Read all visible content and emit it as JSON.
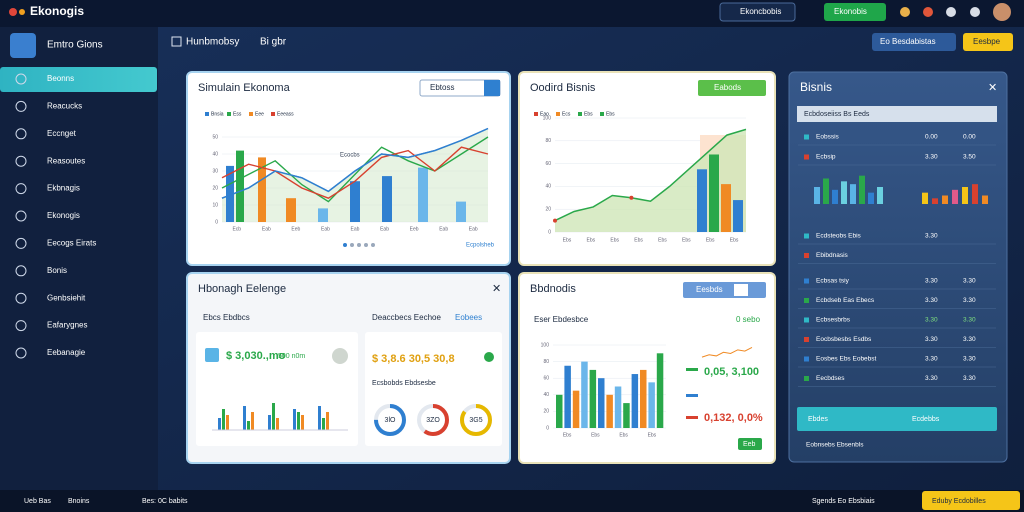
{
  "topbar": {
    "logo": "Ekonogis",
    "search": "Ekoncbobis",
    "button": "Ekonobis"
  },
  "sidebar": {
    "title": "Emtro Gions",
    "items": [
      "Beonns",
      "Reacucks",
      "Eccnget",
      "Reasoutes",
      "Ekbnagis",
      "Ekonogis",
      "Eecogs Eirats",
      "Bonis",
      "Genbsiehit",
      "Eafarygnes",
      "Eebanagie"
    ]
  },
  "header": {
    "left": "Hunbmobsy",
    "tab": "Bi gbr",
    "button": "Eo Besdabistas",
    "action": "Eesbpe"
  },
  "panel1": {
    "title": "Simulain Ekonoma",
    "select": "Ebtoss",
    "legend": [
      "Bnsia",
      "Ess",
      "Eee",
      "Eeeass"
    ],
    "sublabel": "Ecocbs",
    "link": "Ecpolsheb",
    "ylim": [
      0,
      60
    ],
    "yticks": [
      0,
      10,
      20,
      30,
      40,
      50
    ],
    "bars": [
      33,
      42,
      38,
      14,
      8,
      24,
      27,
      32,
      12
    ],
    "bar_colors": [
      "#2f7fd0",
      "#2aa84a",
      "#f08a24",
      "#f08a24",
      "#6bb6ea",
      "#2f7fd0",
      "#2f7fd0",
      "#6bb6ea",
      "#6bb6ea"
    ],
    "lines": [
      {
        "color": "#2aa84a",
        "values": [
          20,
          28,
          36,
          22,
          12,
          28,
          44,
          36,
          30,
          40,
          50
        ]
      },
      {
        "color": "#d8412f",
        "values": [
          26,
          34,
          30,
          20,
          14,
          24,
          38,
          42,
          30,
          44,
          40
        ]
      },
      {
        "color": "#2f7fd0",
        "values": [
          14,
          20,
          30,
          26,
          18,
          30,
          40,
          38,
          42,
          48,
          55
        ]
      }
    ],
    "xlabels": [
      "Ecb",
      "Eab",
      "Eeb",
      "Eab",
      "Eab",
      "Eab",
      "Eeb",
      "Eab",
      "Eab"
    ]
  },
  "panel2": {
    "title": "Oodird Bisnis",
    "button": "Eabods",
    "legend": [
      "Eao",
      "Ecs",
      "Ebs",
      "Ebs"
    ],
    "ylim": [
      0,
      100
    ],
    "yticks": [
      0,
      20,
      40,
      60,
      80,
      100
    ],
    "area": [
      10,
      18,
      22,
      32,
      30,
      27,
      40,
      55,
      70,
      85,
      90
    ],
    "bars": [
      55,
      68,
      42,
      28
    ],
    "bar_colors": [
      "#2f7fd0",
      "#2aa84a",
      "#f08a24",
      "#2f7fd0"
    ],
    "xlabels": [
      "Ebs",
      "Ebs",
      "Ebs",
      "Ebs",
      "Ebs",
      "Ebs",
      "Ebs",
      "Ebs"
    ]
  },
  "panel3": {
    "title": "Hbonagh Eelenge",
    "card1": {
      "title": "Ebcs Ebdbcs",
      "amount": "$ 3,030.,mo",
      "sub": "500 n0m",
      "bars": [
        20,
        35,
        25,
        40,
        15,
        30,
        25,
        45,
        20,
        35,
        30,
        25,
        40,
        20,
        30
      ]
    },
    "card2": {
      "title": "Deaccbecs Eechoe",
      "link": "Eobees",
      "amount": "$ 3,8.6 30,5 30,8",
      "sub": "Ecsbobds Ebdsesbe",
      "donuts": [
        75,
        60,
        85
      ],
      "donut_labels": [
        "3lO",
        "3ZO",
        "3G5"
      ]
    }
  },
  "panel4": {
    "title": "Bbdnodis",
    "button": "Eesbds",
    "subtitle": "Eser Ebdesbce",
    "tag": "0 sebo",
    "ylim": [
      0,
      100
    ],
    "yticks": [
      0,
      20,
      40,
      60,
      80,
      100
    ],
    "bars": [
      40,
      75,
      45,
      80,
      70,
      60,
      40,
      50,
      30,
      65,
      70,
      55,
      90
    ],
    "xlabels": [
      "Ebs",
      "Ebs",
      "Ebs",
      "Ebs"
    ],
    "spark": [
      20,
      30,
      25,
      40,
      35,
      50,
      45,
      60
    ],
    "stat1": "0,05, 3,100",
    "stat2": "0,132, 0,0%",
    "ok": "Eeb"
  },
  "panel5": {
    "title": "Bisnis",
    "head": "Ecbdoseiiss Bs Eeds",
    "rows1": [
      [
        "Eobssis",
        "0.00",
        "0.00"
      ],
      [
        "Ecbsip",
        "3.30",
        "3.50"
      ]
    ],
    "bars_a": [
      30,
      45,
      25,
      40,
      35,
      50,
      20,
      30
    ],
    "bars_b": [
      20,
      10,
      15,
      25,
      30,
      35,
      15
    ],
    "rows2": [
      [
        "Ecdsteobs Ebis",
        "3.30"
      ],
      [
        "Ebibdnasis"
      ],
      [
        "Ecbsas tsiy",
        "3.30",
        "3.30"
      ],
      [
        "Ecbdseb Eas Ebecs",
        "3.30",
        "3.30"
      ],
      [
        "Ecbsesbrbs",
        "3.30",
        "3.30"
      ],
      [
        "Eocbsbesbs Esdbs",
        "3.30",
        "3.30"
      ],
      [
        "Eosbes Ebs Eobebst",
        "3.30",
        "3.30"
      ],
      [
        "Eecbdses",
        "3.30",
        "3.30"
      ]
    ],
    "highlight": [
      "Ebdes",
      "Ecdebbs"
    ],
    "foot": "Eobnsebs Ebsenbls"
  },
  "footer": {
    "left": "Ueb Bas",
    "left2": "Bnoins",
    "mid": "Bes: 0C babits",
    "right": "Sgends Eo Ebsbiais",
    "button": "Eduby Ecdobilles"
  }
}
